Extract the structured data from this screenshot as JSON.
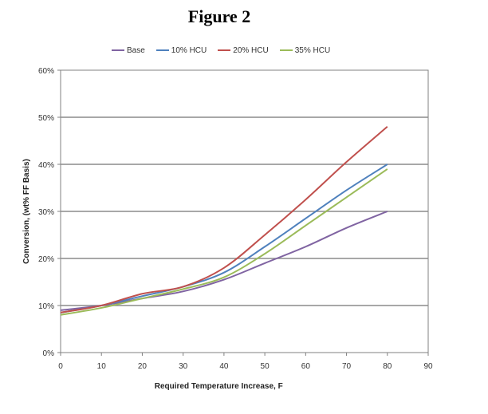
{
  "figure_title": "Figure 2",
  "chart_data": {
    "type": "line",
    "title": "Figure 2",
    "xlabel": "Required Temperature Increase,  F",
    "ylabel": "Conversion, (wt% FF Basis)",
    "xlim": [
      0,
      90
    ],
    "ylim": [
      0,
      60
    ],
    "x_ticks": [
      "0",
      "10",
      "20",
      "30",
      "40",
      "50",
      "60",
      "70",
      "80",
      "90"
    ],
    "y_ticks": [
      "0%",
      "10%",
      "20%",
      "30%",
      "40%",
      "50%",
      "60%"
    ],
    "grid": "horizontal",
    "legend_position": "top",
    "series": [
      {
        "name": "Base",
        "color": "#8064A2",
        "x": [
          0,
          10,
          20,
          30,
          40,
          50,
          60,
          70,
          80
        ],
        "y": [
          9,
          10,
          11.5,
          13,
          15.5,
          19,
          22.5,
          26.5,
          30
        ]
      },
      {
        "name": "10% HCU",
        "color": "#4F81BD",
        "x": [
          0,
          10,
          20,
          30,
          40,
          50,
          60,
          70,
          80
        ],
        "y": [
          8.5,
          10,
          12,
          14,
          17,
          22.5,
          28.5,
          34.5,
          40
        ]
      },
      {
        "name": "20% HCU",
        "color": "#C0504D",
        "x": [
          0,
          10,
          20,
          30,
          40,
          50,
          60,
          70,
          80
        ],
        "y": [
          8.5,
          10,
          12.5,
          14,
          18,
          25,
          32.5,
          40.5,
          48
        ]
      },
      {
        "name": "35% HCU",
        "color": "#9BBB59",
        "x": [
          0,
          10,
          20,
          30,
          40,
          50,
          60,
          70,
          80
        ],
        "y": [
          8,
          9.5,
          11.5,
          13.5,
          16,
          21,
          27,
          33,
          39
        ]
      }
    ]
  }
}
